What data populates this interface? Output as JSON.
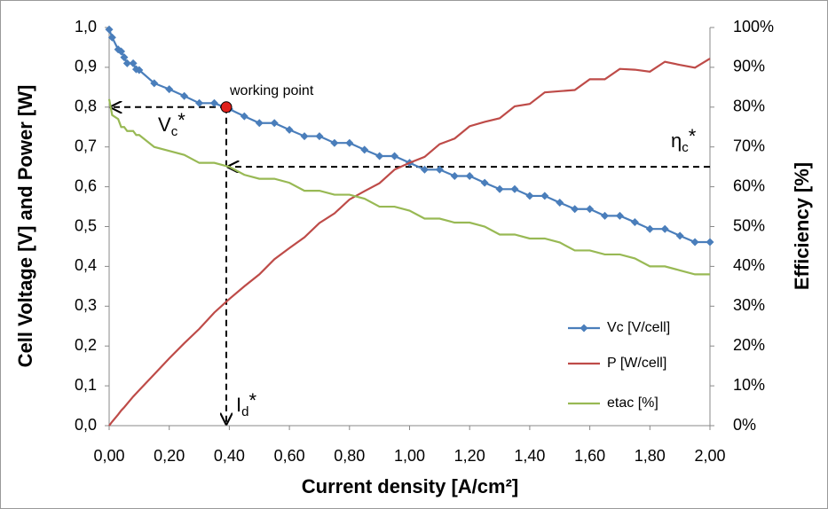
{
  "chart_data": {
    "type": "line",
    "xlabel": "Current density [A/cm²]",
    "ylabel": "Cell Voltage [V] and Power [W]",
    "y2label": "Efficiency [%]",
    "x": [
      0,
      0.01,
      0.03,
      0.04,
      0.05,
      0.06,
      0.08,
      0.09,
      0.1,
      0.15,
      0.2,
      0.25,
      0.3,
      0.35,
      0.4,
      0.45,
      0.5,
      0.55,
      0.6,
      0.65,
      0.7,
      0.75,
      0.8,
      0.85,
      0.9,
      0.95,
      1.0,
      1.05,
      1.1,
      1.15,
      1.2,
      1.25,
      1.3,
      1.35,
      1.4,
      1.45,
      1.5,
      1.55,
      1.6,
      1.65,
      1.7,
      1.75,
      1.8,
      1.85,
      1.9,
      1.95,
      2.0
    ],
    "series": [
      {
        "name": "Vc [V/cell]",
        "color": "#4a7ebb",
        "markers": true,
        "values": [
          0.995,
          0.975,
          0.945,
          0.94,
          0.925,
          0.91,
          0.91,
          0.895,
          0.893,
          0.86,
          0.845,
          0.828,
          0.81,
          0.81,
          0.795,
          0.777,
          0.76,
          0.76,
          0.743,
          0.727,
          0.727,
          0.71,
          0.71,
          0.693,
          0.677,
          0.677,
          0.66,
          0.643,
          0.643,
          0.627,
          0.627,
          0.61,
          0.594,
          0.594,
          0.577,
          0.577,
          0.56,
          0.544,
          0.544,
          0.527,
          0.527,
          0.511,
          0.494,
          0.494,
          0.477,
          0.461,
          0.461
        ]
      },
      {
        "name": "P [W/cell]",
        "color": "#be4b48",
        "markers": false,
        "values": [
          0,
          0.01,
          0.028,
          0.038,
          0.046,
          0.055,
          0.073,
          0.081,
          0.089,
          0.129,
          0.169,
          0.207,
          0.243,
          0.284,
          0.318,
          0.35,
          0.38,
          0.418,
          0.446,
          0.473,
          0.509,
          0.533,
          0.568,
          0.589,
          0.609,
          0.643,
          0.66,
          0.675,
          0.707,
          0.721,
          0.752,
          0.763,
          0.772,
          0.802,
          0.808,
          0.837,
          0.84,
          0.843,
          0.87,
          0.87,
          0.896,
          0.894,
          0.889,
          0.914,
          0.906,
          0.899,
          0.922
        ]
      },
      {
        "name": "etac [%]",
        "color": "#98b954",
        "markers": false,
        "axis": "y2",
        "values": [
          82,
          78,
          77,
          75,
          75,
          74,
          74,
          73,
          73,
          70,
          69,
          68,
          66,
          66,
          65,
          63,
          62,
          62,
          61,
          59,
          59,
          58,
          58,
          57,
          55,
          55,
          54,
          52,
          52,
          51,
          51,
          50,
          48,
          48,
          47,
          47,
          46,
          44,
          44,
          43,
          43,
          42,
          40,
          40,
          39,
          38,
          38
        ]
      }
    ],
    "xlim": [
      0,
      2
    ],
    "xticks": [
      {
        "value": 0,
        "label": "0,00"
      },
      {
        "value": 0.2,
        "label": "0,20"
      },
      {
        "value": 0.4,
        "label": "0,40"
      },
      {
        "value": 0.6,
        "label": "0,60"
      },
      {
        "value": 0.8,
        "label": "0,80"
      },
      {
        "value": 1.0,
        "label": "1,00"
      },
      {
        "value": 1.2,
        "label": "1,20"
      },
      {
        "value": 1.4,
        "label": "1,40"
      },
      {
        "value": 1.6,
        "label": "1,60"
      },
      {
        "value": 1.8,
        "label": "1,80"
      },
      {
        "value": 2.0,
        "label": "2,00"
      }
    ],
    "ylim": [
      0,
      1
    ],
    "yticks": [
      {
        "value": 0,
        "label": "0,0"
      },
      {
        "value": 0.1,
        "label": "0,1"
      },
      {
        "value": 0.2,
        "label": "0,2"
      },
      {
        "value": 0.3,
        "label": "0,3"
      },
      {
        "value": 0.4,
        "label": "0,4"
      },
      {
        "value": 0.5,
        "label": "0,5"
      },
      {
        "value": 0.6,
        "label": "0,6"
      },
      {
        "value": 0.7,
        "label": "0,7"
      },
      {
        "value": 0.8,
        "label": "0,8"
      },
      {
        "value": 0.9,
        "label": "0,9"
      },
      {
        "value": 1.0,
        "label": "1,0"
      }
    ],
    "y2lim": [
      0,
      100
    ],
    "y2ticks": [
      {
        "value": 0,
        "label": "0%"
      },
      {
        "value": 10,
        "label": "10%"
      },
      {
        "value": 20,
        "label": "20%"
      },
      {
        "value": 30,
        "label": "30%"
      },
      {
        "value": 40,
        "label": "40%"
      },
      {
        "value": 50,
        "label": "50%"
      },
      {
        "value": 60,
        "label": "60%"
      },
      {
        "value": 70,
        "label": "70%"
      },
      {
        "value": 80,
        "label": "80%"
      },
      {
        "value": 90,
        "label": "90%"
      },
      {
        "value": 100,
        "label": "100%"
      }
    ],
    "grid": false,
    "legend": "lower right",
    "working_point": {
      "label": "working point",
      "x": 0.39,
      "y": 0.8,
      "color": "#e0201b"
    },
    "eta_level": 65,
    "annotations": {
      "voltage": {
        "base": "V",
        "sub": "c",
        "suffix": "*"
      },
      "efficiency": {
        "base": "η",
        "sub": "c",
        "suffix": "*"
      },
      "current": {
        "base": "I",
        "sub": "d",
        "suffix": "*"
      }
    }
  }
}
